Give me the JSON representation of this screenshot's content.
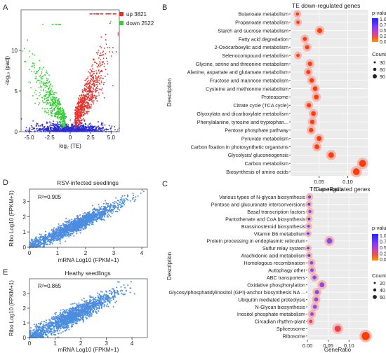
{
  "panels": {
    "A": {
      "letter": "A",
      "ylabel": "-log₁₀ (padj)",
      "xlabel": "log₂ (TE)",
      "xticks": [
        "-5.0",
        "-2.5",
        "0",
        "2.5",
        "5.0"
      ],
      "yticks": [
        "0",
        "5",
        "10"
      ],
      "legend": [
        {
          "label": "up 3821",
          "color": "#e8302a"
        },
        {
          "label": "down 2522",
          "color": "#2fcf2f"
        }
      ],
      "ns_color": "#2b2bd6"
    },
    "B": {
      "letter": "B",
      "title": "TE down-regulated genes",
      "xlabel": "GeneRatio",
      "ylabel": "Description",
      "xticks": [
        "0.05",
        "0.10"
      ],
      "legend_pvalue_title": "p-value",
      "pvalue_ticks": [
        "1.00",
        "0.75",
        "0.50",
        "0.25",
        "0.00"
      ],
      "legend_count_title": "Count",
      "count_ticks": [
        "30",
        "60",
        "90"
      ]
    },
    "C": {
      "letter": "C",
      "title": "TE up-regulated genes",
      "xlabel": "GeneRatio",
      "ylabel": "Description",
      "xticks": [
        "0.00",
        "0.05",
        "0.10"
      ],
      "legend_pvalue_title": "p-value",
      "pvalue_ticks": [
        "1.00",
        "0.75",
        "0.50",
        "0.25",
        "0.00"
      ],
      "legend_count_title": "Count",
      "count_ticks": [
        "20",
        "40",
        "60"
      ]
    },
    "D": {
      "letter": "D",
      "title": "RSV-infected seedlings",
      "r2": "R²=0.905",
      "xlabel": "mRNA Log10 (FPKM+1)",
      "ylabel": "Ribo Log10 (FPKM+1)",
      "xticks": [
        "0",
        "1",
        "2",
        "3",
        "4"
      ],
      "yticks": [
        "0",
        "1",
        "2",
        "3"
      ]
    },
    "E": {
      "letter": "E",
      "title": "Heathy seedlings",
      "r2": "R²=0.865",
      "xlabel": "mRNA Log10 (FPKM+1)",
      "ylabel": "Ribo Log10 (FPKM+1)",
      "xticks": [
        "0",
        "1",
        "2",
        "3",
        "4"
      ],
      "yticks": [
        "0",
        "1",
        "2",
        "3"
      ]
    }
  },
  "chart_data": [
    {
      "type": "scatter",
      "panel": "A",
      "xlim": [
        -6,
        6
      ],
      "ylim": [
        0,
        15
      ],
      "series": [
        {
          "name": "up 3821",
          "count": 3821
        },
        {
          "name": "down 2522",
          "count": 2522
        }
      ]
    },
    {
      "type": "scatter",
      "panel": "B",
      "title": "TE down-regulated genes",
      "xlabel": "GeneRatio",
      "ylabel": "Description",
      "categories": [
        "Butanoate metabolism",
        "Propanoate metabolism",
        "Starch and sucrose metabolism",
        "Fatty acid degradation",
        "2-Oxocarboxylic acid metabolism",
        "Selenocompound metabolism",
        "Glycine, serine and threonine metabolism",
        "Alanine, aspartate and glutamate metabolism",
        "Fructose and mannose metabolism",
        "Cysteine and methionine metabolism",
        "Proteasome",
        "Citrate cycle (TCA cycle)",
        "Glyoxylata and dicarboxylate metabolism",
        "Phenylalanine, tyrosine and tryptophan...",
        "Pentose phosphate pathway",
        "Pyruvate metabolism",
        "Carbon fixation in photosynthetic organisms",
        "Glycolysis/ gluconeogensis",
        "Carbon metabolism",
        "Biosynthesis of amino acids"
      ],
      "gene_ratio": [
        0.012,
        0.013,
        0.051,
        0.025,
        0.029,
        0.013,
        0.034,
        0.031,
        0.037,
        0.043,
        0.045,
        0.032,
        0.04,
        0.038,
        0.036,
        0.05,
        0.046,
        0.071,
        0.126,
        0.115
      ],
      "count": [
        12,
        13,
        52,
        25,
        30,
        13,
        35,
        32,
        38,
        44,
        46,
        33,
        41,
        39,
        37,
        51,
        47,
        72,
        128,
        117
      ],
      "pvalue": [
        0.05,
        0.05,
        0.01,
        0.02,
        0.02,
        0.05,
        0.02,
        0.03,
        0.02,
        0.02,
        0.02,
        0.03,
        0.02,
        0.03,
        0.03,
        0.01,
        0.02,
        0.01,
        0.0,
        0.0
      ],
      "xlim": [
        0,
        0.135
      ],
      "pvalue_range": [
        0,
        1
      ],
      "legend": "right"
    },
    {
      "type": "scatter",
      "panel": "C",
      "title": "TE up-regulated genes",
      "xlabel": "GeneRatio",
      "ylabel": "Description",
      "categories": [
        "Various types of N-glycan biosynthesis",
        "Pentose and glucuronate interconversions",
        "Basal transcription factors",
        "Pantothenate and CoA biosynthesis",
        "Brassinosteroid biosynthesis",
        "Vitamin B6 metabolism",
        "Protein processing in endoplasmic reticulum",
        "Sulfur relay system",
        "Arachidonic acid metabolism",
        "Homologous recombination",
        "Autophagy other",
        "ABC transporters",
        "Oxidative phosphorylation",
        "Glycosylphosphatidylinositol (GPI)-anchor biosynthesis NA ...",
        "Ubiquitin mediated proteolysis",
        "N-Glycan biosynthesis",
        "Inositol phosphate metabolism",
        "Circadian rhythm-plant",
        "Spliceosome",
        "Ribosome"
      ],
      "gene_ratio": [
        0.005,
        0.004,
        0.006,
        0.004,
        0.003,
        0.002,
        0.053,
        0.002,
        0.004,
        0.01,
        0.011,
        0.017,
        0.035,
        0.023,
        0.021,
        0.018,
        0.011,
        0.008,
        0.073,
        0.14
      ],
      "count": [
        6,
        4,
        7,
        4,
        3,
        2,
        54,
        2,
        4,
        11,
        12,
        18,
        36,
        24,
        22,
        19,
        12,
        9,
        75,
        145
      ],
      "pvalue": [
        0.8,
        0.85,
        0.75,
        0.85,
        0.8,
        0.9,
        0.7,
        0.9,
        0.85,
        0.75,
        0.75,
        0.75,
        0.65,
        0.7,
        0.65,
        0.7,
        0.55,
        0.3,
        0.2,
        0.0
      ],
      "xlim": [
        0,
        0.145
      ],
      "pvalue_range": [
        0,
        1
      ],
      "legend": "right"
    },
    {
      "type": "scatter",
      "panel": "D",
      "title": "RSV-infected seedlings",
      "xlabel": "mRNA Log10 (FPKM+1)",
      "ylabel": "Ribo Log10 (FPKM+1)",
      "xlim": [
        0,
        4.2
      ],
      "ylim": [
        0,
        3.8
      ],
      "r2": 0.905
    },
    {
      "type": "scatter",
      "panel": "E",
      "title": "Heathy seedlings",
      "xlabel": "mRNA Log10 (FPKM+1)",
      "ylabel": "Ribo Log10 (FPKM+1)",
      "xlim": [
        0,
        4.6
      ],
      "ylim": [
        0,
        4
      ],
      "r2": 0.865
    }
  ]
}
